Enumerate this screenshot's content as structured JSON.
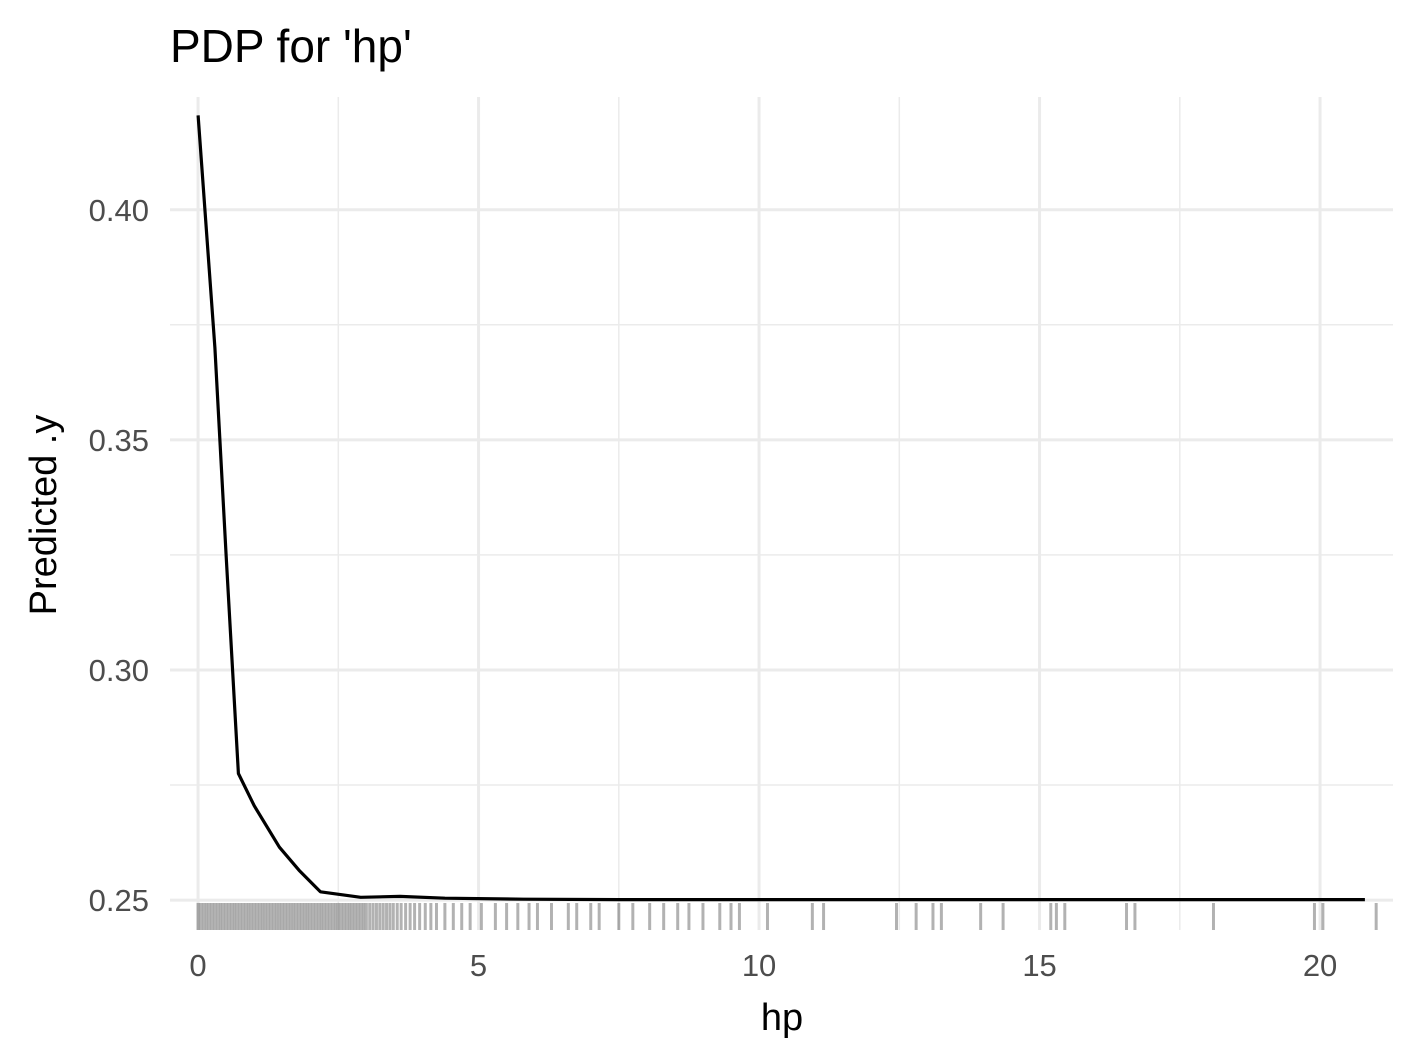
{
  "chart_data": {
    "type": "line",
    "title": "PDP for 'hp'",
    "xlabel": "hp",
    "ylabel": "Predicted .y",
    "xlim": [
      -0.5,
      21.3
    ],
    "ylim": [
      0.2435,
      0.4245
    ],
    "x_ticks": [
      0,
      5,
      10,
      15,
      20
    ],
    "x_tick_labels": [
      "0",
      "5",
      "10",
      "15",
      "20"
    ],
    "y_ticks": [
      0.25,
      0.3,
      0.35,
      0.4
    ],
    "y_tick_labels": [
      "0.25",
      "0.30",
      "0.35",
      "0.40"
    ],
    "grid": true,
    "series": [
      {
        "x": [
          0.0,
          0.3,
          0.5,
          0.72,
          1.0,
          1.45,
          1.8,
          2.18,
          2.9,
          3.6,
          4.4,
          5.8,
          7.5,
          10.0,
          15.0,
          20.0,
          20.8
        ],
        "y": [
          0.4205,
          0.37,
          0.325,
          0.2775,
          0.2705,
          0.2615,
          0.2565,
          0.2518,
          0.2506,
          0.2508,
          0.2504,
          0.2502,
          0.2501,
          0.2501,
          0.2501,
          0.2501,
          0.2501
        ],
        "color": "#000000"
      }
    ],
    "rug": {
      "color": "#000000",
      "x": [
        0.0,
        0.05,
        0.1,
        0.15,
        0.2,
        0.25,
        0.3,
        0.35,
        0.4,
        0.45,
        0.5,
        0.55,
        0.6,
        0.65,
        0.7,
        0.75,
        0.8,
        0.85,
        0.9,
        0.95,
        1.0,
        1.05,
        1.1,
        1.15,
        1.2,
        1.25,
        1.3,
        1.35,
        1.4,
        1.45,
        1.5,
        1.55,
        1.6,
        1.65,
        1.7,
        1.75,
        1.8,
        1.85,
        1.9,
        1.95,
        2.0,
        2.05,
        2.1,
        2.15,
        2.2,
        2.25,
        2.3,
        2.35,
        2.4,
        2.45,
        2.5,
        2.55,
        2.6,
        2.65,
        2.7,
        2.75,
        2.8,
        2.85,
        2.9,
        2.95,
        3.0,
        3.06,
        3.12,
        3.18,
        3.24,
        3.3,
        3.36,
        3.42,
        3.48,
        3.55,
        3.62,
        3.7,
        3.78,
        3.86,
        3.95,
        4.05,
        4.15,
        4.25,
        4.4,
        4.55,
        4.7,
        4.85,
        5.05,
        5.3,
        5.5,
        5.7,
        5.9,
        6.05,
        6.3,
        6.6,
        6.75,
        7.0,
        7.15,
        7.5,
        7.75,
        8.05,
        8.3,
        8.55,
        8.75,
        9.0,
        9.3,
        9.5,
        9.65,
        10.15,
        10.95,
        11.15,
        12.45,
        12.8,
        13.1,
        13.25,
        13.95,
        14.35,
        15.2,
        15.3,
        15.45,
        16.55,
        16.7,
        18.1,
        19.9,
        20.05,
        21.0
      ]
    }
  }
}
